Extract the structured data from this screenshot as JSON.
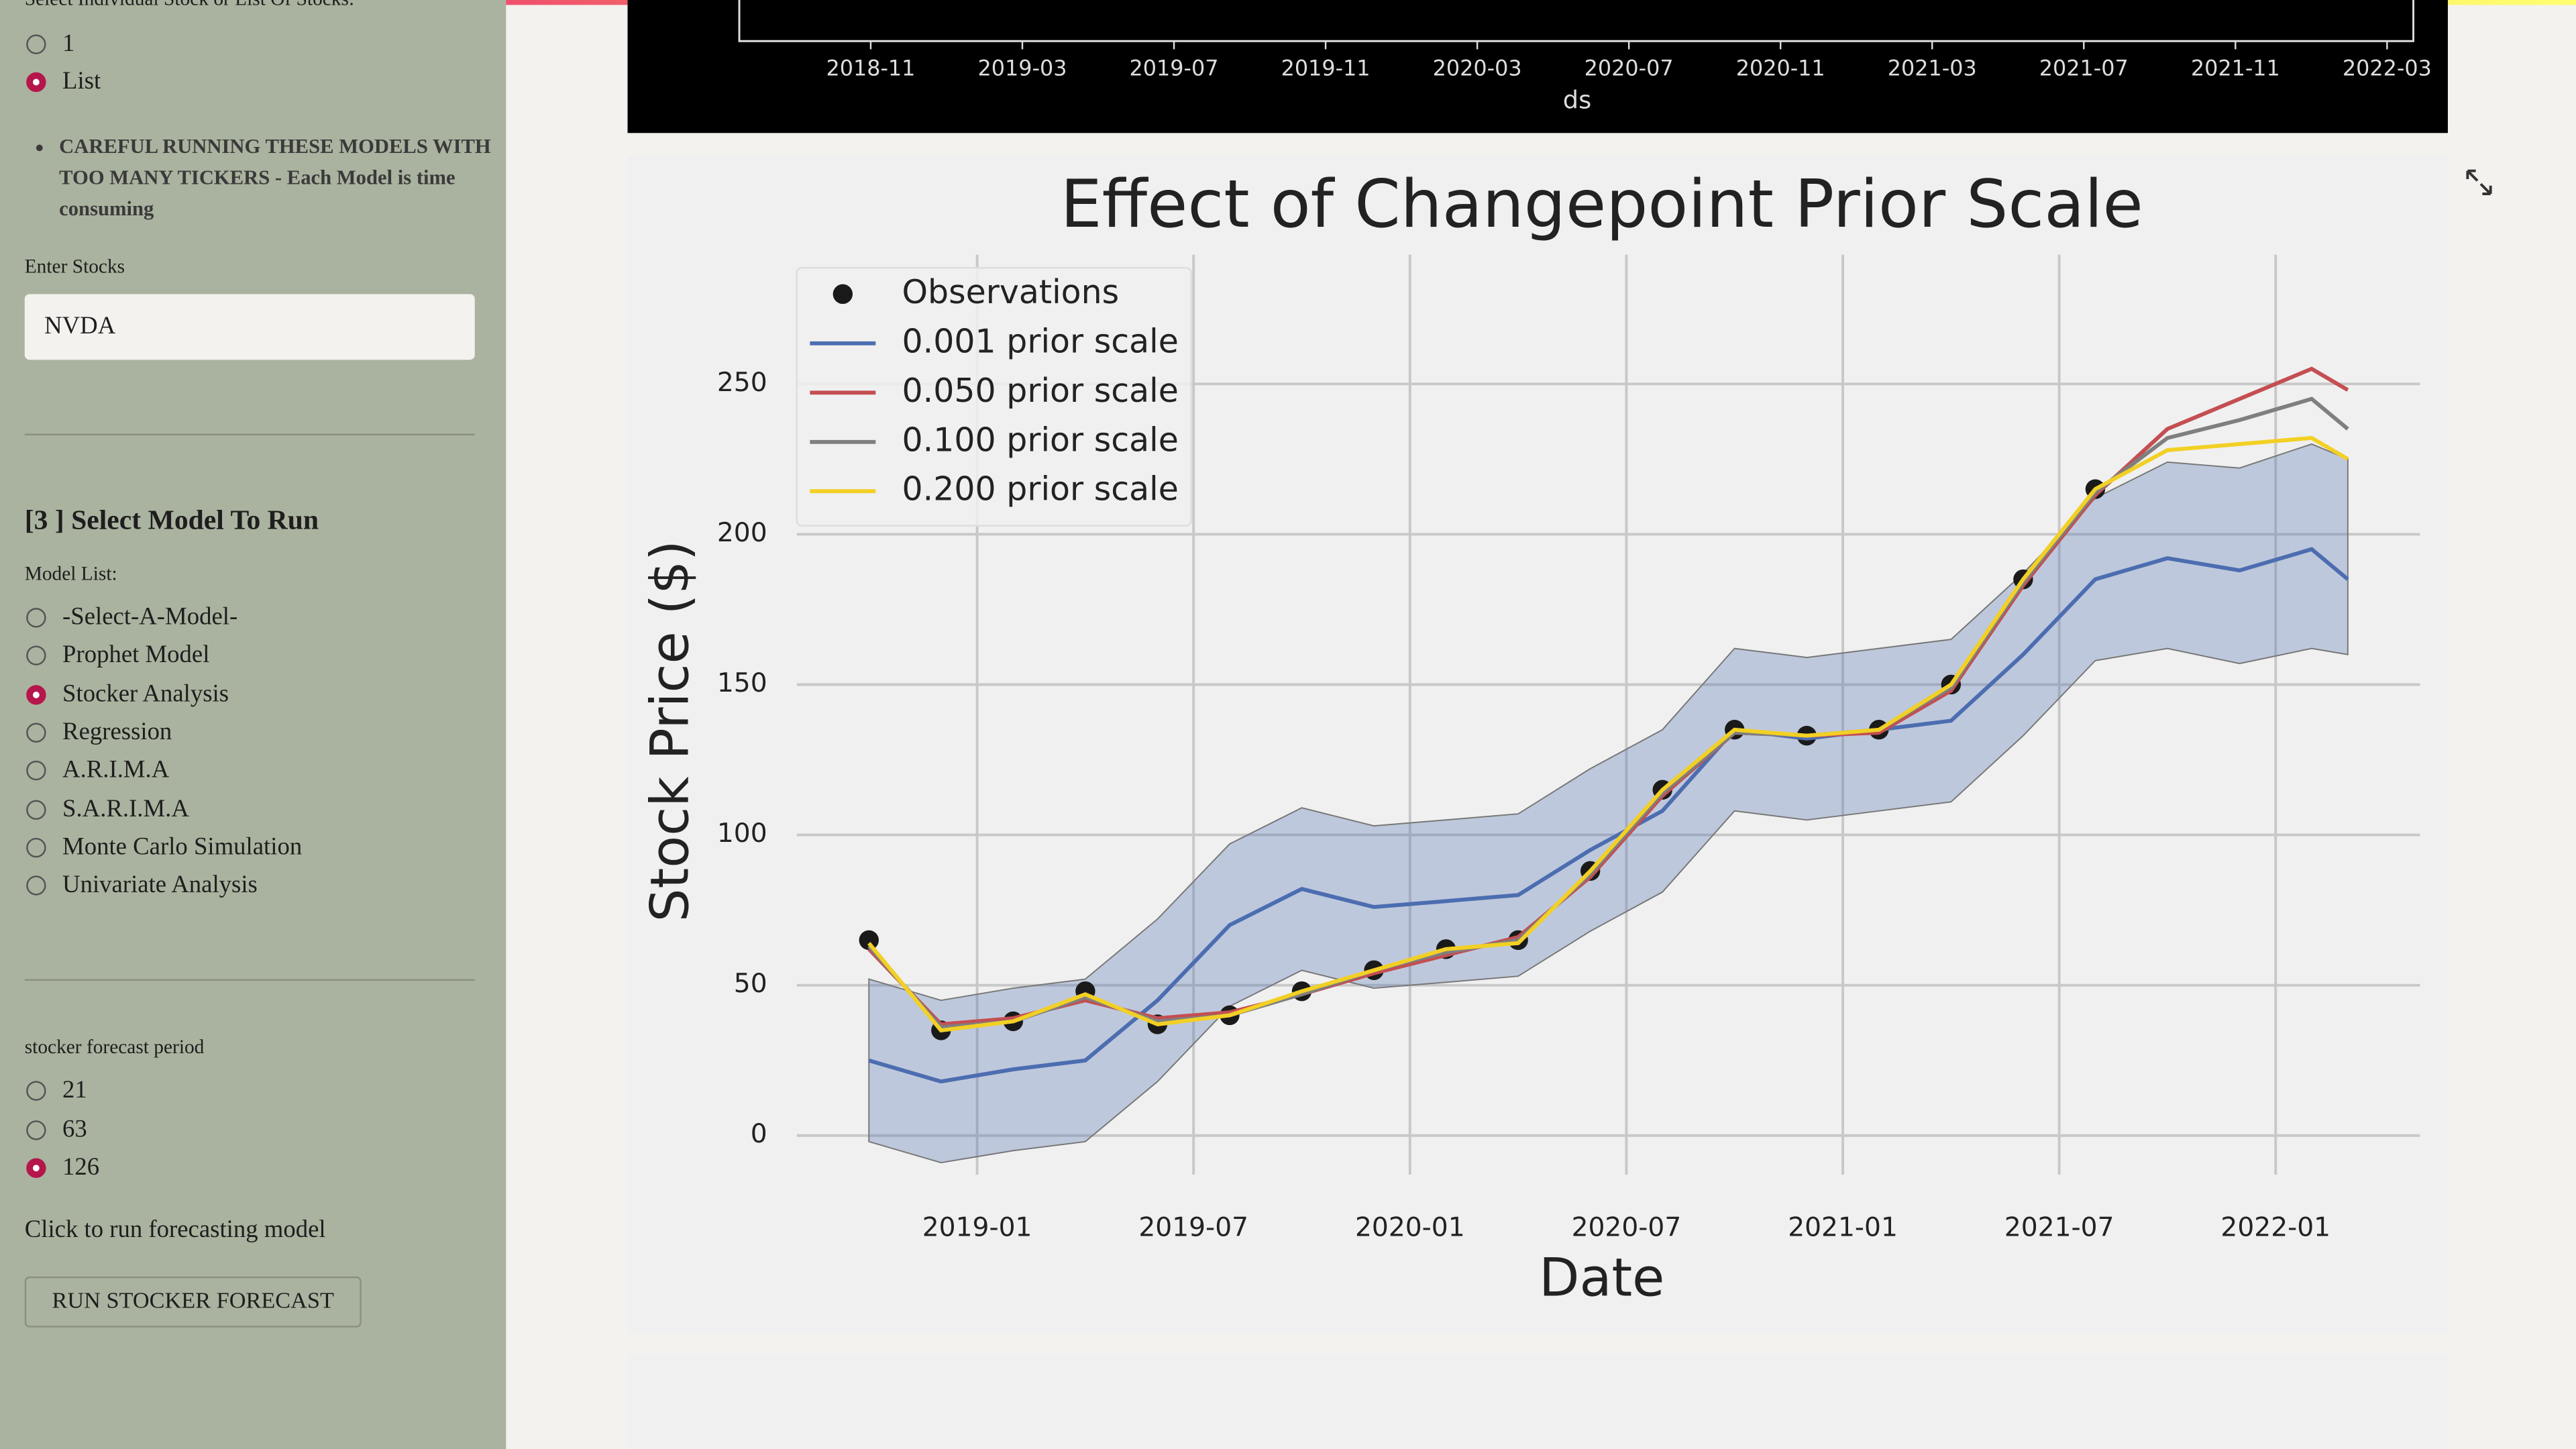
{
  "sidebar": {
    "stock_header": "Select Individual Stock or List Of Stocks:",
    "stock_mode": {
      "options": [
        "1",
        "List"
      ],
      "selected": 1
    },
    "warning": "CAREFUL RUNNING THESE MODELS WITH TOO MANY TICKERS - Each Model is time consuming",
    "stocks_label": "Enter Stocks",
    "stocks_value": "NVDA",
    "model_header": "[3 ] Select Model To Run",
    "model_label": "Model List:",
    "models": {
      "options": [
        "-Select-A-Model-",
        "Prophet Model",
        "Stocker Analysis",
        "Regression",
        "A.R.I.M.A",
        "S.A.R.I.M.A",
        "Monte Carlo Simulation",
        "Univariate Analysis"
      ],
      "selected": 2
    },
    "period_label": "stocker forecast period",
    "periods": {
      "options": [
        "21",
        "63",
        "126"
      ],
      "selected": 2
    },
    "run_label": "Click to run forecasting model",
    "run_button": "RUN STOCKER FORECAST"
  },
  "previous_chart": {
    "xticks": [
      "2018-11",
      "2019-03",
      "2019-07",
      "2019-11",
      "2020-03",
      "2020-07",
      "2020-11",
      "2021-03",
      "2021-07",
      "2021-11",
      "2022-03"
    ],
    "xlabel": "ds"
  },
  "chart_data": {
    "type": "line",
    "title": "Effect of Changepoint Prior Scale",
    "xlabel": "Date",
    "ylabel": "Stock Price ($)",
    "x": [
      "2018-10",
      "2018-12",
      "2019-02",
      "2019-04",
      "2019-06",
      "2019-08",
      "2019-10",
      "2019-12",
      "2020-02",
      "2020-04",
      "2020-06",
      "2020-08",
      "2020-10",
      "2020-12",
      "2021-02",
      "2021-04",
      "2021-06",
      "2021-08",
      "2021-10",
      "2021-12",
      "2022-02",
      "2022-03"
    ],
    "xlim": [
      "2018-08",
      "2022-05"
    ],
    "xticks": [
      "2019-01",
      "2019-07",
      "2020-01",
      "2020-07",
      "2021-01",
      "2021-07",
      "2022-01"
    ],
    "ylim": [
      -13,
      293
    ],
    "yticks": [
      0,
      50,
      100,
      150,
      200,
      250
    ],
    "grid": true,
    "legend": "upper left",
    "observations": {
      "name": "Observations",
      "color": "#1a1a1a",
      "values": [
        65,
        35,
        38,
        48,
        37,
        40,
        48,
        55,
        62,
        65,
        88,
        115,
        135,
        133,
        135,
        150,
        185,
        215,
        null,
        null,
        null,
        null
      ]
    },
    "series": [
      {
        "name": "0.001 prior scale",
        "color": "#4c6db0",
        "values": [
          25,
          18,
          22,
          25,
          45,
          70,
          82,
          76,
          78,
          80,
          95,
          108,
          135,
          132,
          135,
          138,
          160,
          185,
          192,
          188,
          195,
          185
        ],
        "upper": [
          52,
          45,
          49,
          52,
          72,
          97,
          109,
          103,
          105,
          107,
          122,
          135,
          162,
          159,
          162,
          165,
          187,
          212,
          224,
          222,
          230,
          225
        ],
        "lower": [
          -2,
          -9,
          -5,
          -2,
          18,
          43,
          55,
          49,
          51,
          53,
          68,
          81,
          108,
          105,
          108,
          111,
          133,
          158,
          162,
          157,
          162,
          160
        ]
      },
      {
        "name": "0.050 prior scale",
        "color": "#c44e52",
        "values": [
          62,
          37,
          39,
          45,
          39,
          41,
          47,
          54,
          60,
          66,
          86,
          113,
          134,
          133,
          134,
          148,
          183,
          213,
          235,
          245,
          255,
          248
        ]
      },
      {
        "name": "0.100 prior scale",
        "color": "#7f7f7f",
        "values": [
          63,
          36,
          38,
          46,
          38,
          40,
          47,
          55,
          61,
          65,
          87,
          114,
          134,
          133,
          135,
          149,
          184,
          214,
          232,
          238,
          245,
          235
        ]
      },
      {
        "name": "0.200 prior scale",
        "color": "#f2d024",
        "values": [
          64,
          35,
          38,
          47,
          37,
          40,
          48,
          55,
          62,
          64,
          88,
          115,
          135,
          133,
          135,
          150,
          185,
          215,
          228,
          230,
          232,
          225
        ]
      }
    ]
  }
}
